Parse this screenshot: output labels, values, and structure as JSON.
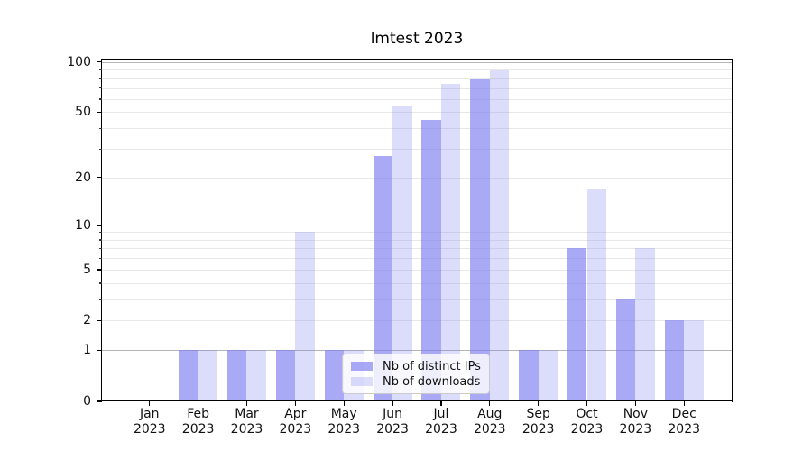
{
  "chart_data": {
    "type": "bar",
    "title": "lmtest 2023",
    "categories": [
      "Jan",
      "Feb",
      "Mar",
      "Apr",
      "May",
      "Jun",
      "Jul",
      "Aug",
      "Sep",
      "Oct",
      "Nov",
      "Dec"
    ],
    "year": "2023",
    "series": [
      {
        "name": "Nb of distinct IPs",
        "color": "rgba(120,120,240,0.64)",
        "values": [
          0,
          1,
          1,
          1,
          1,
          27,
          45,
          79,
          1,
          7,
          3,
          2
        ]
      },
      {
        "name": "Nb of downloads",
        "color": "rgba(120,120,240,0.26)",
        "values": [
          0,
          1,
          1,
          9,
          1,
          55,
          74,
          89,
          1,
          17,
          7,
          2
        ]
      }
    ],
    "yscale": "log1p",
    "ylim": [
      0,
      103.5
    ],
    "ytick_labels": [
      0,
      1,
      2,
      5,
      10,
      20,
      50,
      100
    ],
    "gridlines_dark": [
      1,
      10,
      100
    ],
    "gridlines_faint": [
      2,
      3,
      4,
      6,
      7,
      8,
      9,
      5,
      20,
      30,
      40,
      50,
      60,
      70,
      80,
      90
    ],
    "grid": true,
    "legend_position": "lower-center",
    "xlabel": "",
    "ylabel": ""
  },
  "colors": {
    "bar_base": "#7878f0",
    "grid_dark": "#b5b5b5",
    "grid_faint": "#e8e8e8",
    "spine": "#000000",
    "text": "#111111",
    "legend_border": "#cbcbcb",
    "legend_bg": "rgba(255,255,255,0.8)"
  }
}
